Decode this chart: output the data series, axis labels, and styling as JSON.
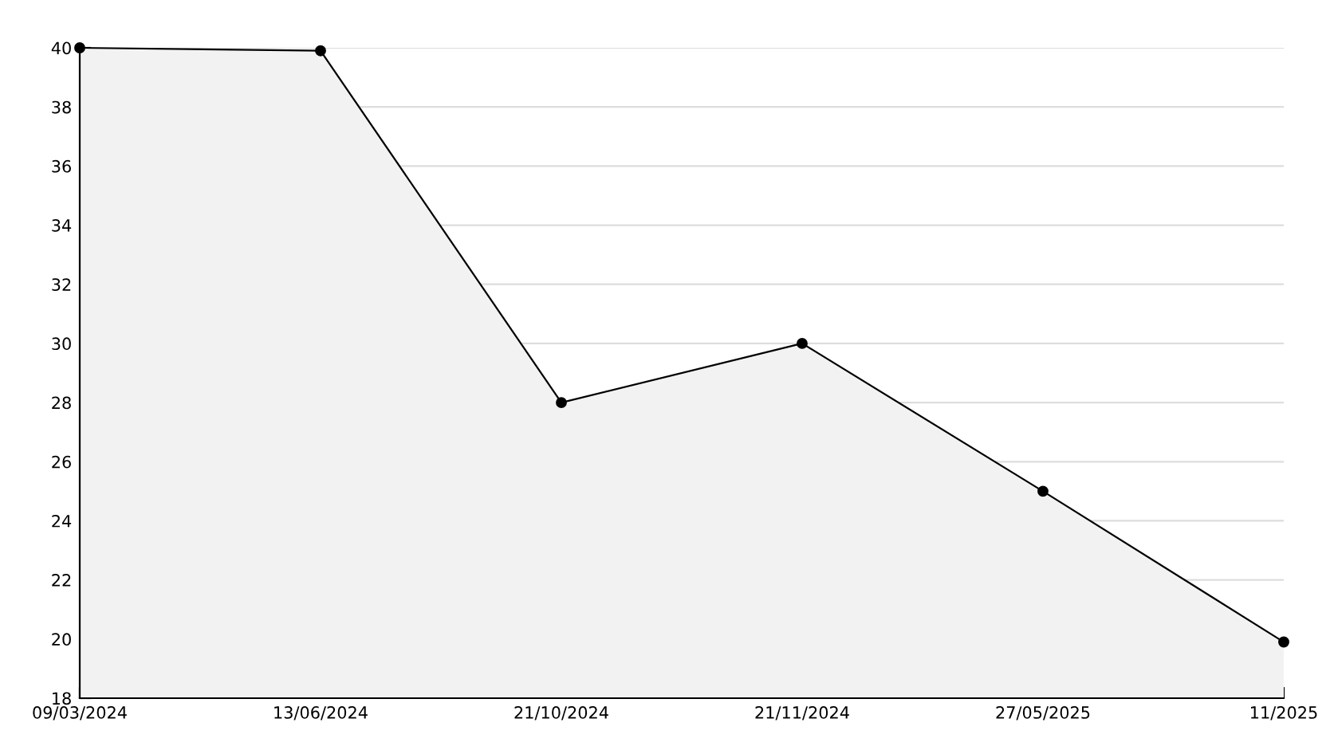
{
  "chart_data": {
    "type": "area",
    "categories": [
      "09/03/2024",
      "13/06/2024",
      "21/10/2024",
      "21/11/2024",
      "27/05/2025",
      "11/2025"
    ],
    "series": [
      {
        "color": "#000000",
        "values": [
          40,
          39.9,
          28,
          30,
          25,
          19.9
        ]
      }
    ],
    "ylim": [
      18,
      40
    ],
    "yticks": [
      18,
      20,
      22,
      24,
      26,
      28,
      30,
      32,
      34,
      36,
      38,
      40
    ],
    "grid": "y",
    "marker": "circle",
    "line_style": "solid",
    "legend": false
  }
}
